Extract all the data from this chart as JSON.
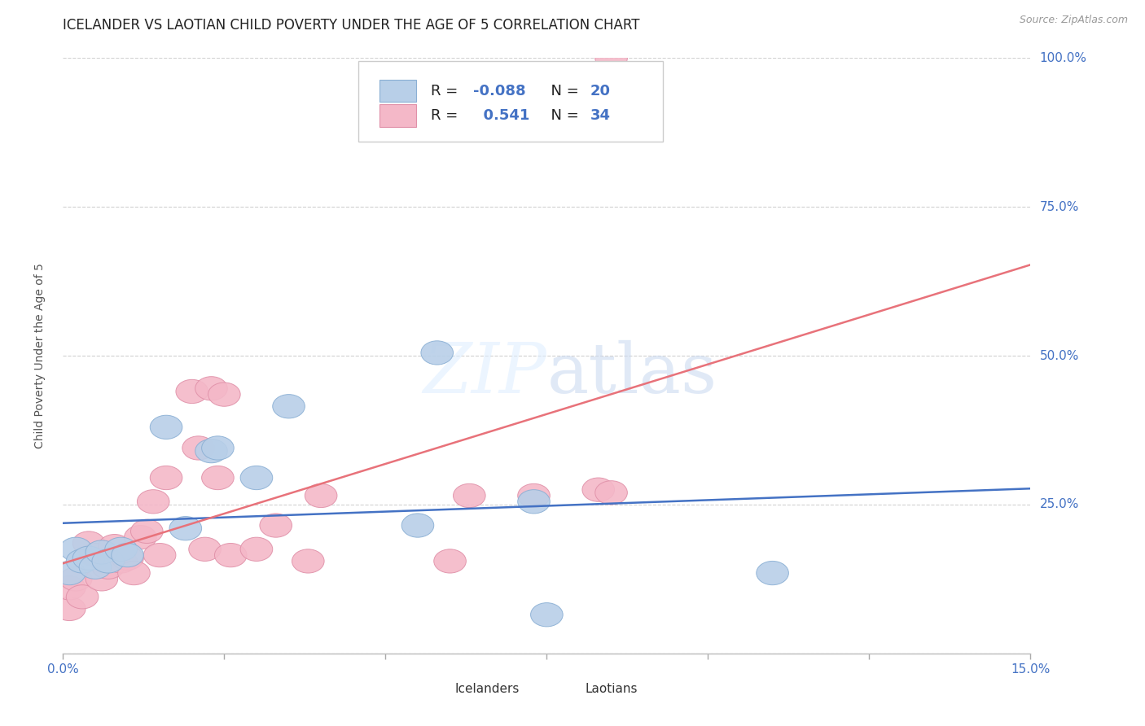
{
  "title": "ICELANDER VS LAOTIAN CHILD POVERTY UNDER THE AGE OF 5 CORRELATION CHART",
  "source": "Source: ZipAtlas.com",
  "ylabel": "Child Poverty Under the Age of 5",
  "xlim": [
    0,
    0.15
  ],
  "ylim": [
    0,
    1.0
  ],
  "xticks": [
    0.0,
    0.025,
    0.05,
    0.075,
    0.1,
    0.125,
    0.15
  ],
  "yticks": [
    0.0,
    0.25,
    0.5,
    0.75,
    1.0
  ],
  "ytick_labels": [
    "",
    "25.0%",
    "50.0%",
    "75.0%",
    "100.0%"
  ],
  "icelanders_x": [
    0.001,
    0.002,
    0.003,
    0.004,
    0.005,
    0.006,
    0.007,
    0.009,
    0.01,
    0.016,
    0.019,
    0.023,
    0.024,
    0.03,
    0.035,
    0.055,
    0.058,
    0.073,
    0.075,
    0.11
  ],
  "icelanders_y": [
    0.135,
    0.175,
    0.155,
    0.16,
    0.145,
    0.17,
    0.155,
    0.175,
    0.165,
    0.38,
    0.21,
    0.34,
    0.345,
    0.295,
    0.415,
    0.215,
    0.505,
    0.255,
    0.065,
    0.135
  ],
  "laotians_x": [
    0.001,
    0.001,
    0.002,
    0.003,
    0.004,
    0.005,
    0.006,
    0.007,
    0.008,
    0.009,
    0.01,
    0.011,
    0.012,
    0.013,
    0.014,
    0.015,
    0.016,
    0.02,
    0.021,
    0.022,
    0.023,
    0.024,
    0.025,
    0.026,
    0.03,
    0.033,
    0.038,
    0.04,
    0.06,
    0.063,
    0.073,
    0.083,
    0.085,
    0.085
  ],
  "laotians_y": [
    0.075,
    0.11,
    0.125,
    0.095,
    0.185,
    0.165,
    0.125,
    0.145,
    0.18,
    0.155,
    0.16,
    0.135,
    0.195,
    0.205,
    0.255,
    0.165,
    0.295,
    0.44,
    0.345,
    0.175,
    0.445,
    0.295,
    0.435,
    0.165,
    0.175,
    0.215,
    0.155,
    0.265,
    0.155,
    0.265,
    0.265,
    0.275,
    0.27,
    1.0
  ],
  "icelander_color": "#b8cfe8",
  "laotian_color": "#f4b8c8",
  "icelander_edge": "#8aafd4",
  "laotian_edge": "#e090a8",
  "icelander_line_color": "#4472c4",
  "laotian_line_color": "#e8727a",
  "R_ice": -0.088,
  "N_ice": 20,
  "R_lao": 0.541,
  "N_lao": 34,
  "axis_color": "#4472c4",
  "text_color": "#222222",
  "grid_color": "#cccccc",
  "background_color": "#ffffff",
  "title_fontsize": 12,
  "label_fontsize": 11,
  "tick_fontsize": 11,
  "legend_fontsize": 13
}
